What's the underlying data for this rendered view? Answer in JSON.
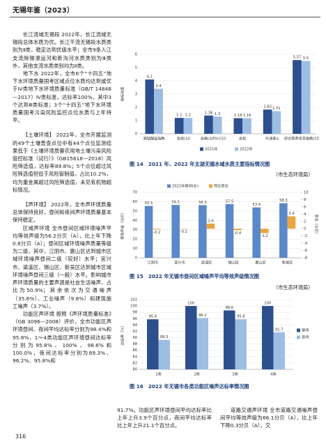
{
  "header": {
    "title": "无锡年鉴（2023）"
  },
  "body": {
    "left": [
      "长江流域无锡段 2022年，长江流域无锡段总体水质为优。长江干流无锡段水质类别为Ⅱ类，稳定达到优级水平；全市9条入江支流除锡澄运河和新沟河水质类别为Ⅲ类外，其他支流水质类别均为Ⅱ类。",
      "地下水 2022年，全市6个“十四五”地下水环境质量国考区域点位水质均达到或优于Ⅳ类地下水环境质量标准（GB/T 14848—2017）Ⅳ类标准，达标率100%，其中3个达到Ⅲ类标准；3个“十四五”地下水环境质量国考污染风险监控点位水质与上年持平。",
      "【土壤环境】 2022年，全市开展监测的49个土壤普查点位中有44个点位监测结果低于《土壤环境质量农用地土壤污染风险管控标准（试行）》（GB15618—2018）风险筛选值，达标率89.8%；5个点位超过风险筛选值但低于风险管制值，占比10.2%，均为重金属超过风险筛选值，未见有机物超标情况。",
      "【声环境】 2022年，全市声环境质量总体保持良好，昼间和夜间声环境质量基本保持稳定。",
      "区域声环境 全市昼间区域环境噪声平均等效声级为56.2分贝（A），比上年下降0.8分贝（A）；昼间区域环境噪声质量等级为二级，其中，江阴市、惠山区达到城市区域环境噪声昼间二级（较好）水平；宜兴市、梁溪区、锡山区、新吴区达到城市区域环境噪声昼间三级（一般）水平。影响城市声环境质量的主要声源是社会生活噪声，占比为50.9%；其余依次为交通噪声（35.6%）、工业噪声（9.8%）和建筑施工噪声（3.7%）。",
      "功能区声环境 按照《声环境质量标准》（GB 3096—2008）评价，全市功能区声环境昼间、夜间平均达标率分别为98.4%和95.8%，1～4类功能区声环境昼间达标率分别为95.8%、100%、98.6%和100.0%，夜间达标率分别为89.3%、96.2%、95.8%和"
    ],
    "bottom_middle": "91.7%。功能区声环境昼间平均达标率比上年上升3.9个百分点，夜间平均达标率比上年上升21.1个百分点。",
    "bottom_right": "道路交通声环境 全市道路交通噪声昼间平均等效声级为66.1分贝（A），比上年下降0.3分贝（A），交"
  },
  "footer": {
    "page": "316"
  },
  "chart_data": [
    {
      "type": "bar",
      "title": "图 14　2021 年、2022 年太湖无锡水域水质主要指标情况图",
      "source": "（市生态环境局）",
      "y_label": "指标浓度",
      "categories": [
        "高锰酸盐指数",
        "氨氮/10",
        "总磷(以P计)/10",
        "总氮",
        "叶绿素a",
        "综合营养状态指数/10"
      ],
      "series": [
        {
          "name": "2021年",
          "color": "#2d4f8e",
          "values": [
            4.1,
            1.2,
            1.38,
            1.18,
            1.83,
            5.57
          ]
        },
        {
          "name": "2022年",
          "color": "#9dbde3",
          "values": [
            3.4,
            1.2,
            1.3,
            1.18,
            1.71,
            5.5
          ]
        }
      ],
      "ylim": [
        0,
        6
      ],
      "yticks": [
        0,
        1,
        2,
        3,
        4,
        5,
        6
      ],
      "legend": "bottom"
    },
    {
      "type": "bar",
      "title": "图 15　2022 年无锡市昼间区域噪声平均等效声级情况图",
      "source": "（市生态环境局）",
      "y_label": "等效声级（分贝）",
      "y2_label": "变化（分贝）",
      "categories": [
        "江阴市",
        "宜兴市",
        "梁溪区",
        "锡山区",
        "惠山区",
        "新吴区"
      ],
      "series": [
        {
          "name": "2022年昼间(左)",
          "color": "#5b88c8",
          "values": [
            55.5,
            56.5,
            56.3,
            57.5,
            53.9,
            58.3
          ]
        },
        {
          "name": "同比变化",
          "color": "#e9a540",
          "axis": "y2",
          "values": [
            -0.2,
            -0.1,
            1.4,
            -0.4,
            -1.2,
            3.4
          ]
        }
      ],
      "ylim": [
        0,
        70
      ],
      "yticks": [
        0,
        10,
        20,
        30,
        40,
        50,
        60,
        70
      ],
      "y2lim": [
        -8,
        10
      ],
      "y2ticks": [
        -8,
        -6,
        -4,
        -2,
        0,
        2,
        4,
        6,
        8,
        10
      ],
      "legend": "top"
    },
    {
      "type": "bar",
      "title": "图 16　2022 年无锡市各类功能区噪声达标率情况图",
      "y_label": "达标率（%）",
      "categories": [
        "1类",
        "2类",
        "3类",
        "4类"
      ],
      "series": [
        {
          "name": "昼间",
          "color": "#2d4f8e",
          "values": [
            95.8,
            100,
            98.6,
            100
          ]
        },
        {
          "name": "夜间",
          "color": "#9dbde3",
          "values": [
            89.3,
            96.2,
            95.8,
            91.7
          ]
        }
      ],
      "ylim": [
        80,
        102
      ],
      "yticks": [
        80,
        82,
        84,
        86,
        88,
        90,
        92,
        94,
        96,
        98,
        100,
        102
      ],
      "legend": "right"
    }
  ]
}
